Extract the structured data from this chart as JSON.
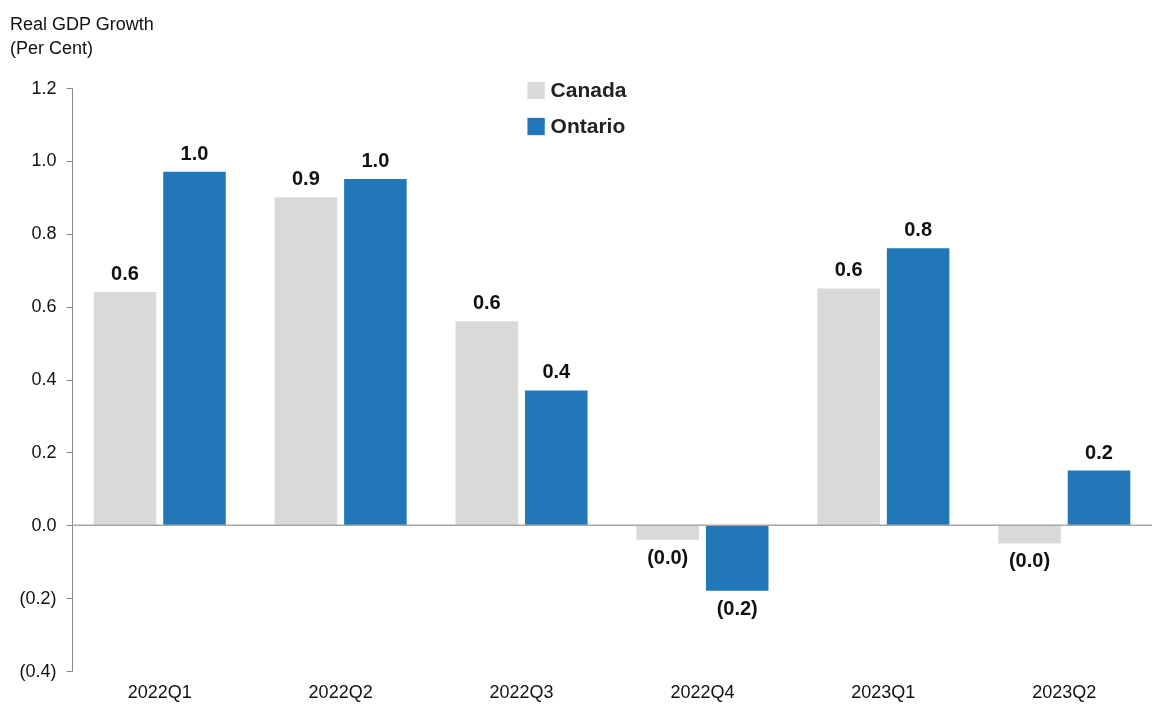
{
  "chart_data": {
    "type": "bar",
    "ylabel": "Real GDP Growth\n(Per Cent)",
    "categories": [
      "2022Q1",
      "2022Q2",
      "2022Q3",
      "2022Q4",
      "2023Q1",
      "2023Q2"
    ],
    "series": [
      {
        "name": "Canada",
        "color": "#d9d9d9",
        "values": [
          0.64,
          0.9,
          0.56,
          -0.04,
          0.65,
          -0.05
        ],
        "value_labels": [
          "0.6",
          "0.9",
          "0.6",
          "(0.0)",
          "0.6",
          "(0.0)"
        ]
      },
      {
        "name": "Ontario",
        "color": "#2277b8",
        "values": [
          0.97,
          0.95,
          0.37,
          -0.18,
          0.76,
          0.15
        ],
        "value_labels": [
          "1.0",
          "1.0",
          "0.4",
          "(0.2)",
          "0.8",
          "0.2"
        ]
      }
    ],
    "ylim": [
      -0.4,
      1.2
    ],
    "yticks": [
      {
        "value": -0.4,
        "label": "(0.4)"
      },
      {
        "value": -0.2,
        "label": "(0.2)"
      },
      {
        "value": 0,
        "label": "0.0"
      },
      0.2,
      0.4,
      0.6,
      0.8,
      {
        "value": 1,
        "label": "1.0"
      },
      1.2
    ],
    "ref_lines": [
      {
        "axis": "y",
        "value": 0,
        "color": "#a6a6a6"
      }
    ],
    "legend": "top",
    "grid": false
  }
}
